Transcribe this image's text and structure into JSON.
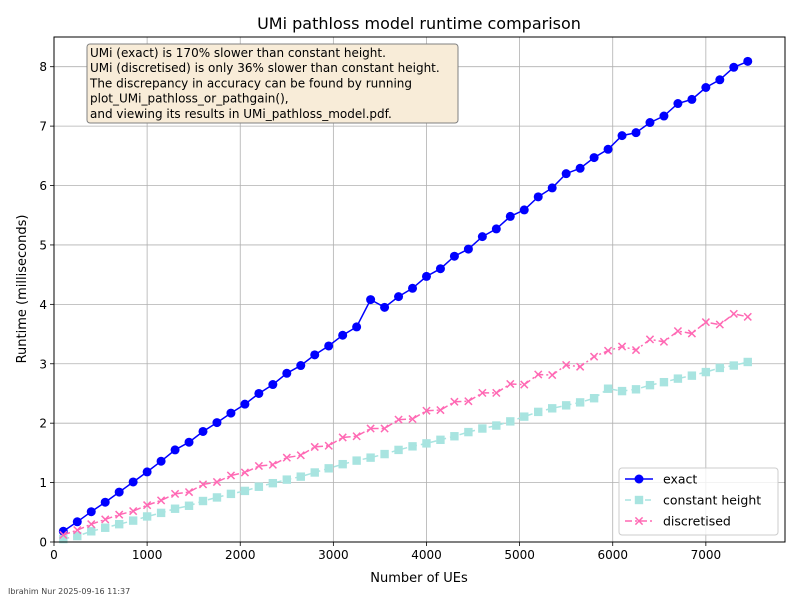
{
  "chart_data": {
    "type": "line",
    "title": "UMi pathloss model runtime comparison",
    "xlabel": "Number of UEs",
    "ylabel": "Runtime (milliseconds)",
    "xlim": [
      0,
      7850
    ],
    "ylim": [
      0,
      8.5
    ],
    "x_ticks": [
      0,
      1000,
      2000,
      3000,
      4000,
      5000,
      6000,
      7000
    ],
    "y_ticks": [
      0,
      1,
      2,
      3,
      4,
      5,
      6,
      7,
      8
    ],
    "grid": true,
    "legend_position": "lower right",
    "x": [
      100,
      250,
      400,
      550,
      700,
      850,
      1000,
      1150,
      1300,
      1450,
      1600,
      1750,
      1900,
      2050,
      2200,
      2350,
      2500,
      2650,
      2800,
      2950,
      3100,
      3250,
      3400,
      3550,
      3700,
      3850,
      4000,
      4150,
      4300,
      4450,
      4600,
      4750,
      4900,
      5050,
      5200,
      5350,
      5500,
      5650,
      5800,
      5950,
      6100,
      6250,
      6400,
      6550,
      6700,
      6850,
      7000,
      7150,
      7300,
      7450
    ],
    "series": [
      {
        "name": "exact",
        "color": "#0000ff",
        "linestyle": "solid",
        "marker": "circle",
        "values": [
          0.18,
          0.34,
          0.51,
          0.67,
          0.84,
          1.01,
          1.18,
          1.36,
          1.55,
          1.68,
          1.86,
          2.01,
          2.17,
          2.32,
          2.5,
          2.65,
          2.84,
          2.97,
          3.15,
          3.3,
          3.48,
          3.62,
          4.08,
          3.95,
          4.13,
          4.27,
          4.47,
          4.6,
          4.81,
          4.93,
          5.14,
          5.27,
          5.48,
          5.59,
          5.81,
          5.96,
          6.2,
          6.29,
          6.47,
          6.61,
          6.84,
          6.89,
          7.06,
          7.17,
          7.38,
          7.45,
          7.65,
          7.78,
          7.99,
          8.09
        ]
      },
      {
        "name": "constant height",
        "color": "#a8e4e0",
        "linestyle": "dashed",
        "marker": "square",
        "values": [
          0.05,
          0.1,
          0.18,
          0.24,
          0.3,
          0.36,
          0.43,
          0.49,
          0.56,
          0.61,
          0.69,
          0.75,
          0.81,
          0.86,
          0.93,
          0.99,
          1.05,
          1.1,
          1.17,
          1.24,
          1.31,
          1.37,
          1.42,
          1.48,
          1.55,
          1.61,
          1.66,
          1.72,
          1.78,
          1.85,
          1.91,
          1.96,
          2.03,
          2.11,
          2.19,
          2.25,
          2.3,
          2.35,
          2.42,
          2.58,
          2.54,
          2.57,
          2.64,
          2.69,
          2.75,
          2.8,
          2.86,
          2.93,
          2.97,
          3.03
        ]
      },
      {
        "name": "discretised",
        "color": "#ff69b4",
        "linestyle": "dashdot",
        "marker": "x",
        "values": [
          0.12,
          0.2,
          0.3,
          0.38,
          0.46,
          0.52,
          0.62,
          0.7,
          0.81,
          0.84,
          0.97,
          1.01,
          1.12,
          1.17,
          1.28,
          1.3,
          1.42,
          1.46,
          1.6,
          1.62,
          1.76,
          1.78,
          1.91,
          1.91,
          2.06,
          2.07,
          2.21,
          2.22,
          2.36,
          2.37,
          2.51,
          2.51,
          2.66,
          2.65,
          2.82,
          2.81,
          2.98,
          2.95,
          3.12,
          3.22,
          3.29,
          3.23,
          3.41,
          3.37,
          3.55,
          3.51,
          3.7,
          3.66,
          3.84,
          3.79
        ]
      }
    ],
    "annotation": {
      "lines": [
        "UMi (exact) is 170% slower than constant height.",
        "UMi (discretised) is only 36% slower than constant height.",
        "The discrepancy in accuracy can be found by running",
        "plot_UMi_pathloss_or_pathgain(),",
        "and viewing its results in UMi_pathloss_model.pdf."
      ],
      "background": "#f8ecd8",
      "border": "#808080"
    }
  },
  "credit": "Ibrahim Nur 2025-09-16 11:37"
}
